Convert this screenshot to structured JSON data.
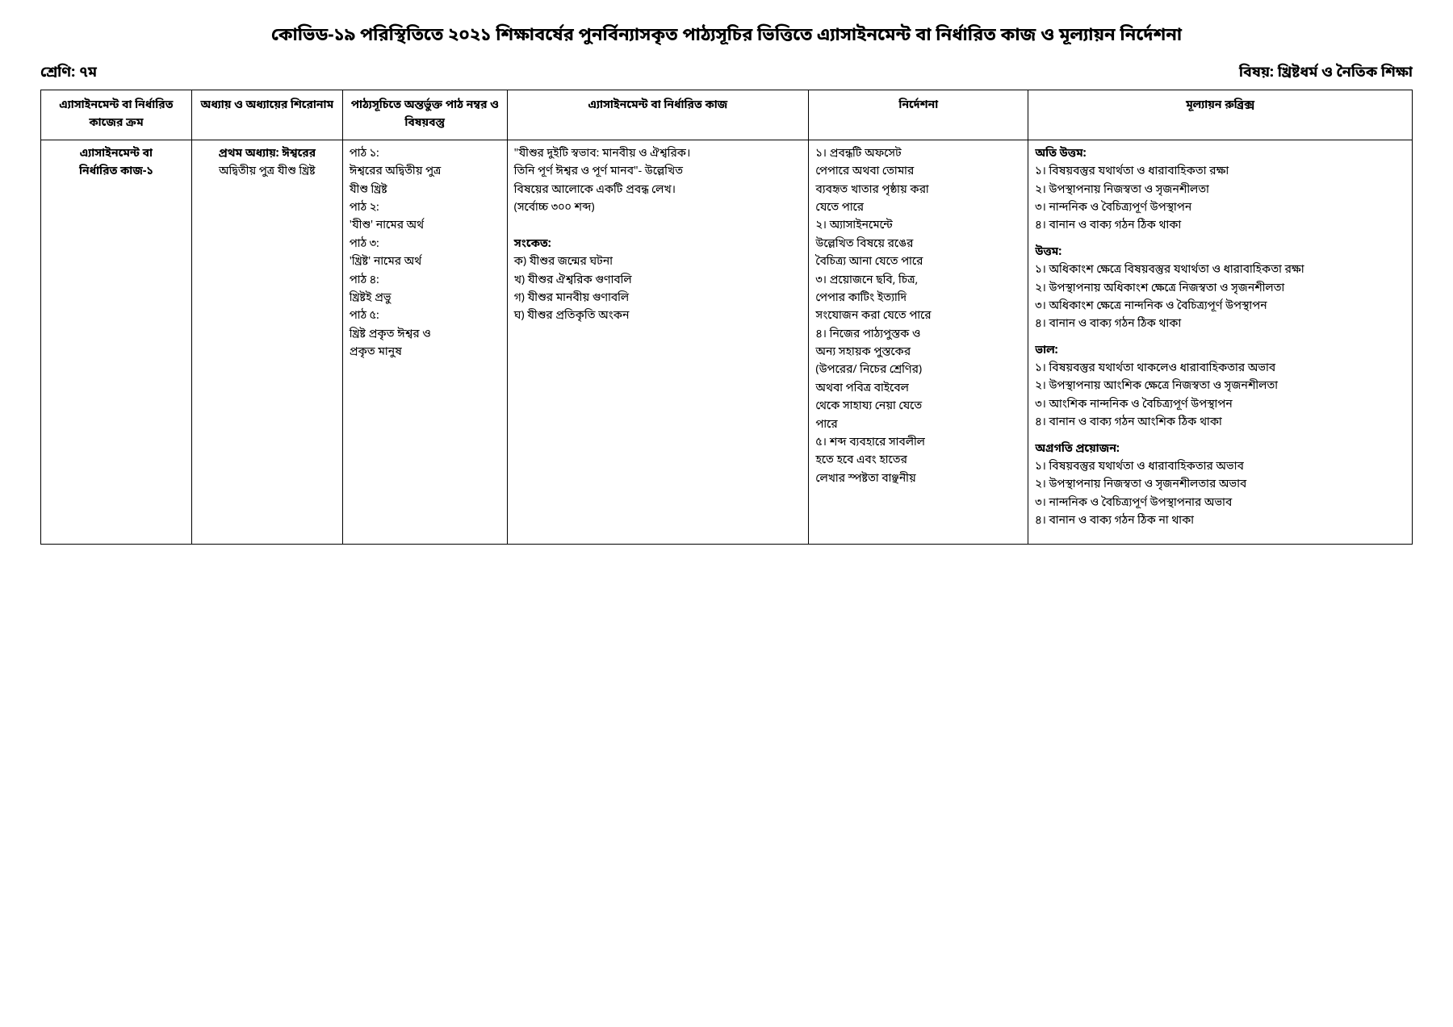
{
  "header": {
    "main_title": "কোভিড-১৯ পরিস্থিতিতে ২০২১ শিক্ষাবর্ষের পুনর্বিন্যাসকৃত পাঠ্যসূচির ভিত্তিতে এ্যাসাইনমেন্ট বা নির্ধারিত কাজ ও মূল্যায়ন নির্দেশনা",
    "class_label": "শ্রেণি: ৭ম",
    "subject_label": "বিষয়: খ্রিষ্টধর্ম ও নৈতিক শিক্ষা"
  },
  "table": {
    "headers": {
      "col1": "এ্যাসাইনমেন্ট বা নির্ধারিত কাজের ক্রম",
      "col2": "অধ্যায় ও অধ্যায়ের শিরোনাম",
      "col3": "পাঠ্যসূচিতে অন্তর্ভুক্ত পাঠ নম্বর ও বিষয়বস্তু",
      "col4": "এ্যাসাইনমেন্ট বা নির্ধারিত কাজ",
      "col5": "নির্দেশনা",
      "col6": "মূল্যায়ন রুব্রিক্স"
    },
    "row": {
      "col1_line1": "এ্যাসাইনমেন্ট বা",
      "col1_line2": "নির্ধারিত কাজ-১",
      "col2_line1": "প্রথম অধ্যায়: ঈশ্বরের",
      "col2_line2": "অদ্বিতীয় পুত্র যীশু খ্রিষ্ট",
      "col3": {
        "l1": "পাঠ ১:",
        "l2": "ঈশ্বরের অদ্বিতীয় পুত্র",
        "l3": "যীশু খ্রিষ্ট",
        "l4": "পাঠ ২:",
        "l5": "'যীশু' নামের অর্থ",
        "l6": "পাঠ ৩:",
        "l7": "'খ্রিষ্ট' নামের অর্থ",
        "l8": "পাঠ ৪:",
        "l9": "খ্রিষ্টই প্রভু",
        "l10": "পাঠ ৫:",
        "l11": "খ্রিষ্ট প্রকৃত ঈশ্বর ও",
        "l12": "প্রকৃত মানুষ"
      },
      "col4": {
        "l1": "\"যীশুর দুইটি স্বভাব: মানবীয় ও ঐশ্বরিক।",
        "l2": "তিনি পূর্ণ ঈশ্বর ও পূর্ণ মানব\"- উল্লেখিত",
        "l3": "বিষয়ের আলোকে একটি প্রবন্ধ লেখ।",
        "l4": "(সর্বোচ্চ ৩০০ শব্দ)",
        "hint_title": "সংকেত:",
        "h1": "ক) যীশুর জন্মের ঘটনা",
        "h2": "খ) যীশুর ঐশ্বরিক গুণাবলি",
        "h3": "গ) যীশুর মানবীয় গুণাবলি",
        "h4": "ঘ) যীশুর প্রতিকৃতি অংকন"
      },
      "col5": {
        "l1": "১। প্রবন্ধটি অফসেট",
        "l2": "পেপারে অথবা তোমার",
        "l3": "ব্যবহৃত খাতার পৃষ্ঠায় করা",
        "l4": "যেতে পারে",
        "l5": "২। অ্যাসাইনমেন্টে",
        "l6": "উল্লেখিত বিষয়ে রঙের",
        "l7": "বৈচিত্র্য আনা যেতে পারে",
        "l8": "৩। প্রয়োজনে ছবি, চিত্র,",
        "l9": "পেপার কাটিং ইত্যাদি",
        "l10": "সংযোজন করা যেতে পারে",
        "l11": "৪। নিজের পাঠ্যপুস্তক ও",
        "l12": "অন্য সহায়ক পুস্তকের",
        "l13": "(উপরের/ নিচের শ্রেণির)",
        "l14": "অথবা পবিত্র বাইবেল",
        "l15": "থেকে সাহায্য নেয়া যেতে",
        "l16": "পারে",
        "l17": "৫। শব্দ ব্যবহারে সাবলীল",
        "l18": "হতে হবে এবং হাতের",
        "l19": "লেখার স্পষ্টতা বাঞ্ছনীয়"
      },
      "col6": {
        "excellent_title": "অতি উত্তম:",
        "ex1": "১। বিষয়বস্তুর যথার্থতা ও ধারাবাহিকতা রক্ষা",
        "ex2": "২। উপস্থাপনায় নিজস্বতা ও সৃজনশীলতা",
        "ex3": "৩। নান্দনিক ও বৈচিত্র্যপূর্ণ উপস্থাপন",
        "ex4": "৪। বানান ও বাক্য গঠন ঠিক থাকা",
        "good_title": "উত্তম:",
        "g1": "১। অধিকাংশ ক্ষেত্রে বিষয়বস্তুর যথার্থতা ও ধারাবাহিকতা রক্ষা",
        "g2": "২। উপস্থাপনায় অধিকাংশ ক্ষেত্রে নিজস্বতা ও সৃজনশীলতা",
        "g3": "৩। অধিকাংশ ক্ষেত্রে নান্দনিক ও বৈচিত্র্যপূর্ণ উপস্থাপন",
        "g4": "৪। বানান ও বাক্য গঠন ঠিক থাকা",
        "fair_title": "ভাল:",
        "f1": "১। বিষয়বস্তুর যথার্থতা থাকলেও  ধারাবাহিকতার অভাব",
        "f2": "২। উপস্থাপনায় আংশিক ক্ষেত্রে নিজস্বতা ও সৃজনশীলতা",
        "f3": "৩। আংশিক নান্দনিক ও বৈচিত্র্যপূর্ণ উপস্থাপন",
        "f4": "৪। বানান ও বাক্য গঠন আংশিক ঠিক থাকা",
        "needs_title": "অগ্রগতি প্রয়োজন:",
        "n1": "১। বিষয়বস্তুর যথার্থতা ও ধারাবাহিকতার অভাব",
        "n2": "২। উপস্থাপনায় নিজস্বতা ও সৃজনশীলতার অভাব",
        "n3": "৩। নান্দনিক ও বৈচিত্র্যপূর্ণ উপস্থাপনার অভাব",
        "n4": "৪। বানান ও বাক্য গঠন ঠিক না থাকা"
      }
    }
  }
}
